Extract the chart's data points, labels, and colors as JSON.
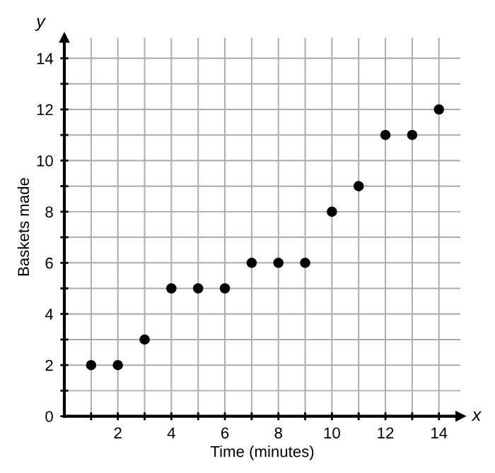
{
  "chart_data": {
    "type": "scatter",
    "xlabel": "Time (minutes)",
    "ylabel": "Baskets made",
    "annotations": [
      "x",
      "y"
    ],
    "x": [
      1,
      2,
      3,
      4,
      5,
      6,
      7,
      8,
      9,
      10,
      11,
      12,
      13,
      14
    ],
    "series": [
      {
        "color": "#000000",
        "values": [
          2,
          2,
          3,
          5,
          5,
          5,
          6,
          6,
          6,
          8,
          9,
          11,
          11,
          12
        ]
      }
    ],
    "xlim": [
      0,
      14.8
    ],
    "ylim": [
      0,
      14.8
    ],
    "xticks": [
      {
        "value": 1,
        "label": null
      },
      2,
      {
        "value": 3,
        "label": null
      },
      4,
      {
        "value": 5,
        "label": null
      },
      6,
      {
        "value": 7,
        "label": null
      },
      8,
      {
        "value": 9,
        "label": null
      },
      10,
      {
        "value": 11,
        "label": null
      },
      12,
      {
        "value": 13,
        "label": null
      },
      14
    ],
    "yticks": [
      0,
      {
        "value": 1,
        "label": null
      },
      2,
      {
        "value": 3,
        "label": null
      },
      4,
      {
        "value": 5,
        "label": null
      },
      6,
      {
        "value": 7,
        "label": null
      },
      8,
      {
        "value": 9,
        "label": null
      },
      10,
      {
        "value": 11,
        "label": null
      },
      12,
      {
        "value": 13,
        "label": null
      },
      14
    ],
    "grid": true,
    "marker": "circle"
  }
}
